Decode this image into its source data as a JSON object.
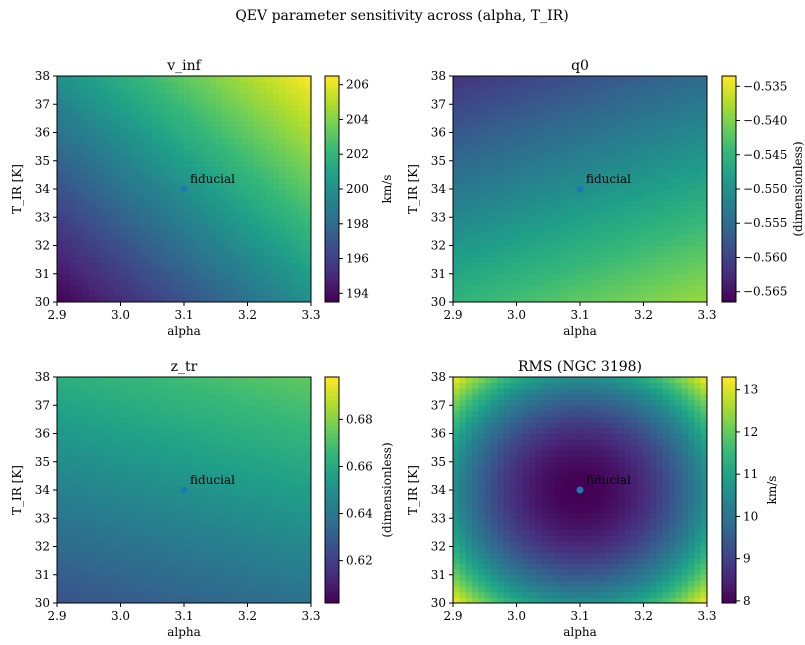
{
  "figure": {
    "suptitle": "QEV parameter sensitivity across (alpha, T_IR)"
  },
  "colormap": {
    "name": "viridis",
    "stops": [
      "#440154",
      "#482878",
      "#3e4989",
      "#31688e",
      "#26828e",
      "#1f9e89",
      "#35b779",
      "#6ece58",
      "#b5de2b",
      "#fde725"
    ]
  },
  "chart_data": [
    {
      "type": "heatmap",
      "title": "v_inf",
      "xlabel": "alpha",
      "ylabel": "T_IR [K]",
      "xlim": [
        2.9,
        3.3
      ],
      "ylim": [
        30,
        38
      ],
      "xticks": [
        "2.9",
        "3.0",
        "3.1",
        "3.2",
        "3.3"
      ],
      "yticks": [
        "30",
        "31",
        "32",
        "33",
        "34",
        "35",
        "36",
        "37",
        "38"
      ],
      "colorbar": {
        "label": "km/s",
        "range": [
          193.5,
          206.5
        ],
        "ticks": [
          "194",
          "196",
          "198",
          "200",
          "202",
          "204",
          "206"
        ]
      },
      "surface": {
        "model": "linear",
        "value_at_fiducial": 200.0,
        "d_dalpha": 16.25,
        "d_dT": 0.8125
      },
      "grid_shape": [
        40,
        40
      ],
      "fiducial": {
        "alpha": 3.1,
        "T_IR": 34,
        "label": "fiducial"
      }
    },
    {
      "type": "heatmap",
      "title": "q0",
      "xlabel": "alpha",
      "ylabel": "T_IR [K]",
      "xlim": [
        2.9,
        3.3
      ],
      "ylim": [
        30,
        38
      ],
      "xticks": [
        "2.9",
        "3.0",
        "3.1",
        "3.2",
        "3.3"
      ],
      "yticks": [
        "30",
        "31",
        "32",
        "33",
        "34",
        "35",
        "36",
        "37",
        "38"
      ],
      "colorbar": {
        "label": "(dimensionless)",
        "range": [
          -0.5665,
          -0.5335
        ],
        "ticks": [
          "−0.565",
          "−0.560",
          "−0.555",
          "−0.550",
          "−0.545",
          "−0.540",
          "−0.535"
        ]
      },
      "surface": {
        "model": "linear",
        "value_at_fiducial": -0.55,
        "d_dalpha": 0.0165,
        "d_dT": -0.00206
      },
      "grid_shape": [
        40,
        40
      ],
      "fiducial": {
        "alpha": 3.1,
        "T_IR": 34,
        "label": "fiducial"
      }
    },
    {
      "type": "heatmap",
      "title": "z_tr",
      "xlabel": "alpha",
      "ylabel": "T_IR [K]",
      "xlim": [
        2.9,
        3.3
      ],
      "ylim": [
        30,
        38
      ],
      "xticks": [
        "2.9",
        "3.0",
        "3.1",
        "3.2",
        "3.3"
      ],
      "yticks": [
        "30",
        "31",
        "32",
        "33",
        "34",
        "35",
        "36",
        "37",
        "38"
      ],
      "colorbar": {
        "label": "(dimensionless)",
        "range": [
          0.602,
          0.698
        ],
        "ticks": [
          "0.62",
          "0.64",
          "0.66",
          "0.68"
        ]
      },
      "surface": {
        "model": "linear",
        "value_at_fiducial": 0.65,
        "d_dalpha": 0.03,
        "d_dT": 0.0045
      },
      "grid_shape": [
        40,
        40
      ],
      "fiducial": {
        "alpha": 3.1,
        "T_IR": 34,
        "label": "fiducial"
      }
    },
    {
      "type": "heatmap",
      "title": "RMS (NGC 3198)",
      "xlabel": "alpha",
      "ylabel": "T_IR [K]",
      "xlim": [
        2.9,
        3.3
      ],
      "ylim": [
        30,
        38
      ],
      "xticks": [
        "2.9",
        "3.0",
        "3.1",
        "3.2",
        "3.3"
      ],
      "yticks": [
        "30",
        "31",
        "32",
        "33",
        "34",
        "35",
        "36",
        "37",
        "38"
      ],
      "colorbar": {
        "label": "km/s",
        "range": [
          7.95,
          13.3
        ],
        "ticks": [
          "8",
          "9",
          "10",
          "11",
          "12",
          "13"
        ]
      },
      "surface": {
        "model": "radial",
        "value_at_fiducial": 7.95,
        "value_at_corner": 13.3
      },
      "grid_shape": [
        40,
        40
      ],
      "fiducial": {
        "alpha": 3.1,
        "T_IR": 34,
        "label": "fiducial"
      }
    }
  ]
}
